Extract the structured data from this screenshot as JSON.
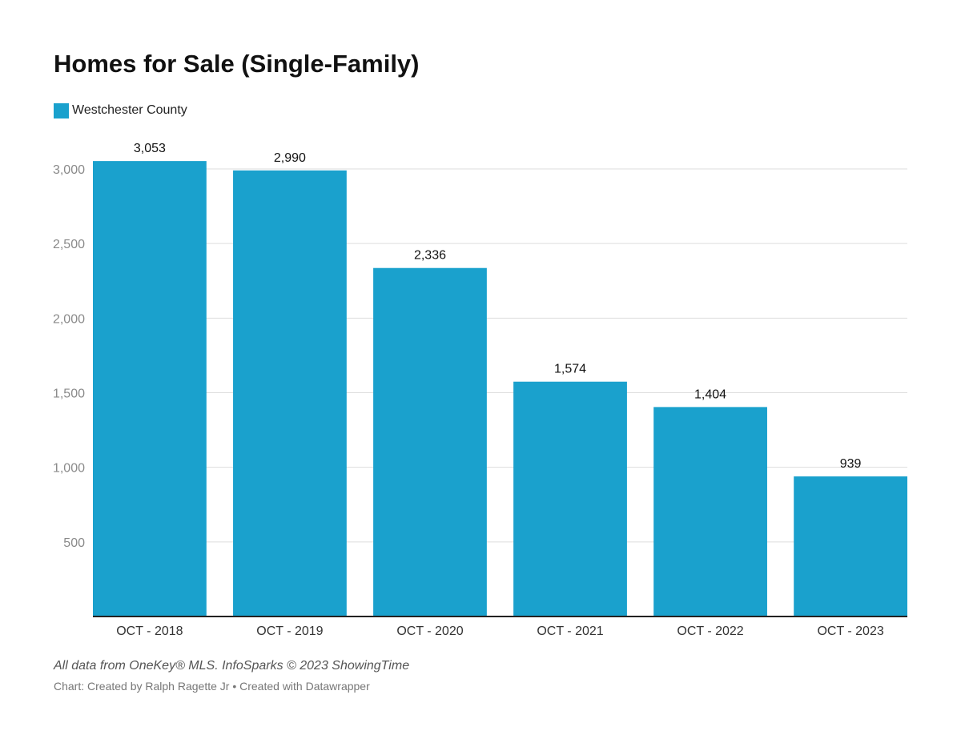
{
  "colors": {
    "bar": "#1aa1cd",
    "grid": "#dddddd",
    "axis": "#222222"
  },
  "chart_data": {
    "type": "bar",
    "title": "Homes for Sale (Single-Family)",
    "categories": [
      "OCT - 2018",
      "OCT - 2019",
      "OCT - 2020",
      "OCT - 2021",
      "OCT - 2022",
      "OCT - 2023"
    ],
    "series": [
      {
        "name": "Westchester County",
        "values": [
          3053,
          2990,
          2336,
          1574,
          1404,
          939
        ]
      }
    ],
    "data_labels": [
      "3,053",
      "2,990",
      "2,336",
      "1,574",
      "1,404",
      "939"
    ],
    "yticks": [
      500,
      1000,
      1500,
      2000,
      2500,
      3000
    ],
    "ytick_labels": [
      "500",
      "1,000",
      "1,500",
      "2,000",
      "2,500",
      "3,000"
    ],
    "ylim": [
      0,
      3000
    ],
    "xlabel": "",
    "ylabel": "",
    "grid": true,
    "legend_position": "top-left"
  },
  "footer": {
    "source": "All data from OneKey® MLS. InfoSparks © 2023 ShowingTime",
    "credit": "Chart: Created by Ralph Ragette Jr • Created with Datawrapper"
  }
}
